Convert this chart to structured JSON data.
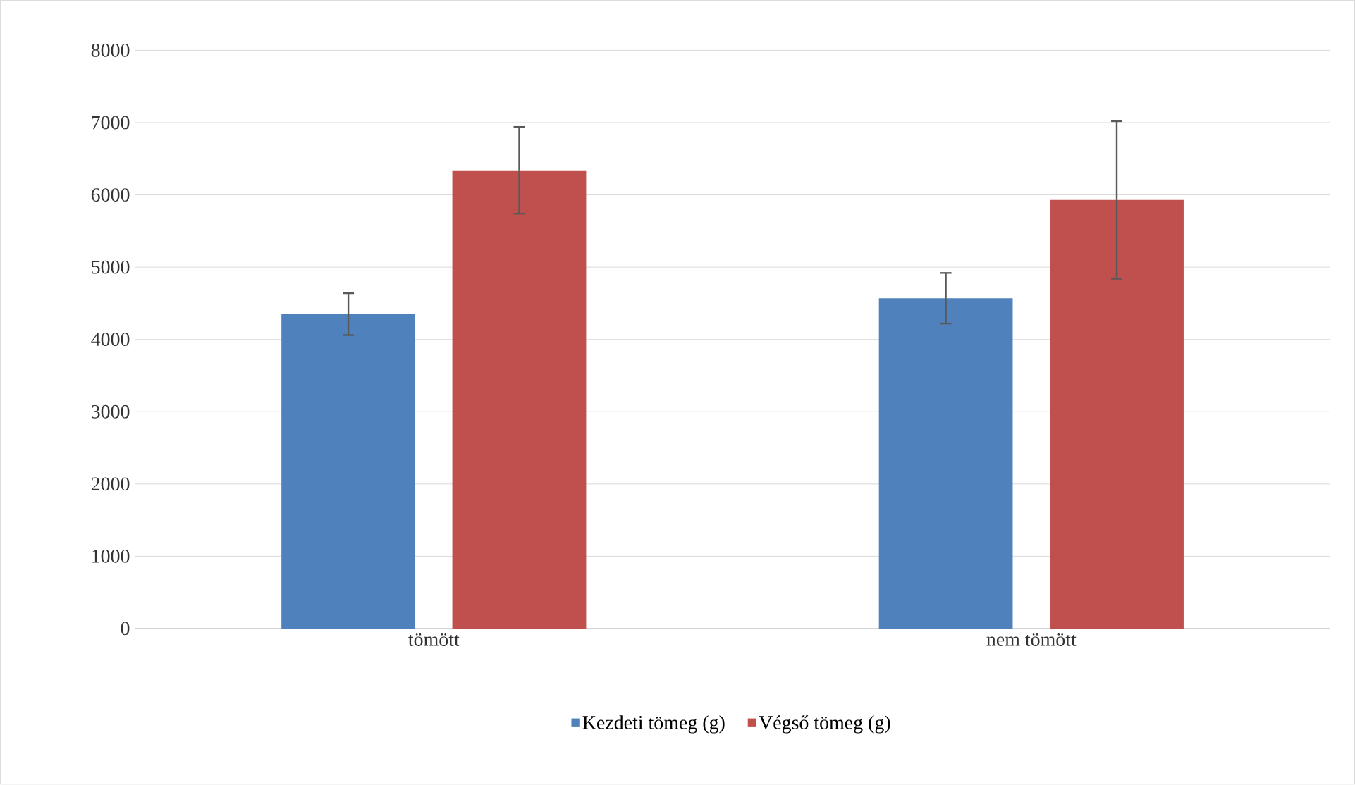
{
  "chart_data": {
    "type": "bar",
    "categories": [
      "tömött",
      "nem tömött"
    ],
    "series": [
      {
        "name": "Kezdeti tömeg (g)",
        "color": "#4f81bd",
        "values": [
          4350,
          4570
        ],
        "errors": [
          290,
          350
        ]
      },
      {
        "name": "Végső tömeg (g)",
        "color": "#c0504d",
        "values": [
          6340,
          5930
        ],
        "errors": [
          600,
          1090
        ]
      }
    ],
    "ylim": [
      0,
      8000
    ],
    "yticks": [
      0,
      1000,
      2000,
      3000,
      4000,
      5000,
      6000,
      7000,
      8000
    ],
    "grid": "y",
    "legend": "bottom"
  }
}
